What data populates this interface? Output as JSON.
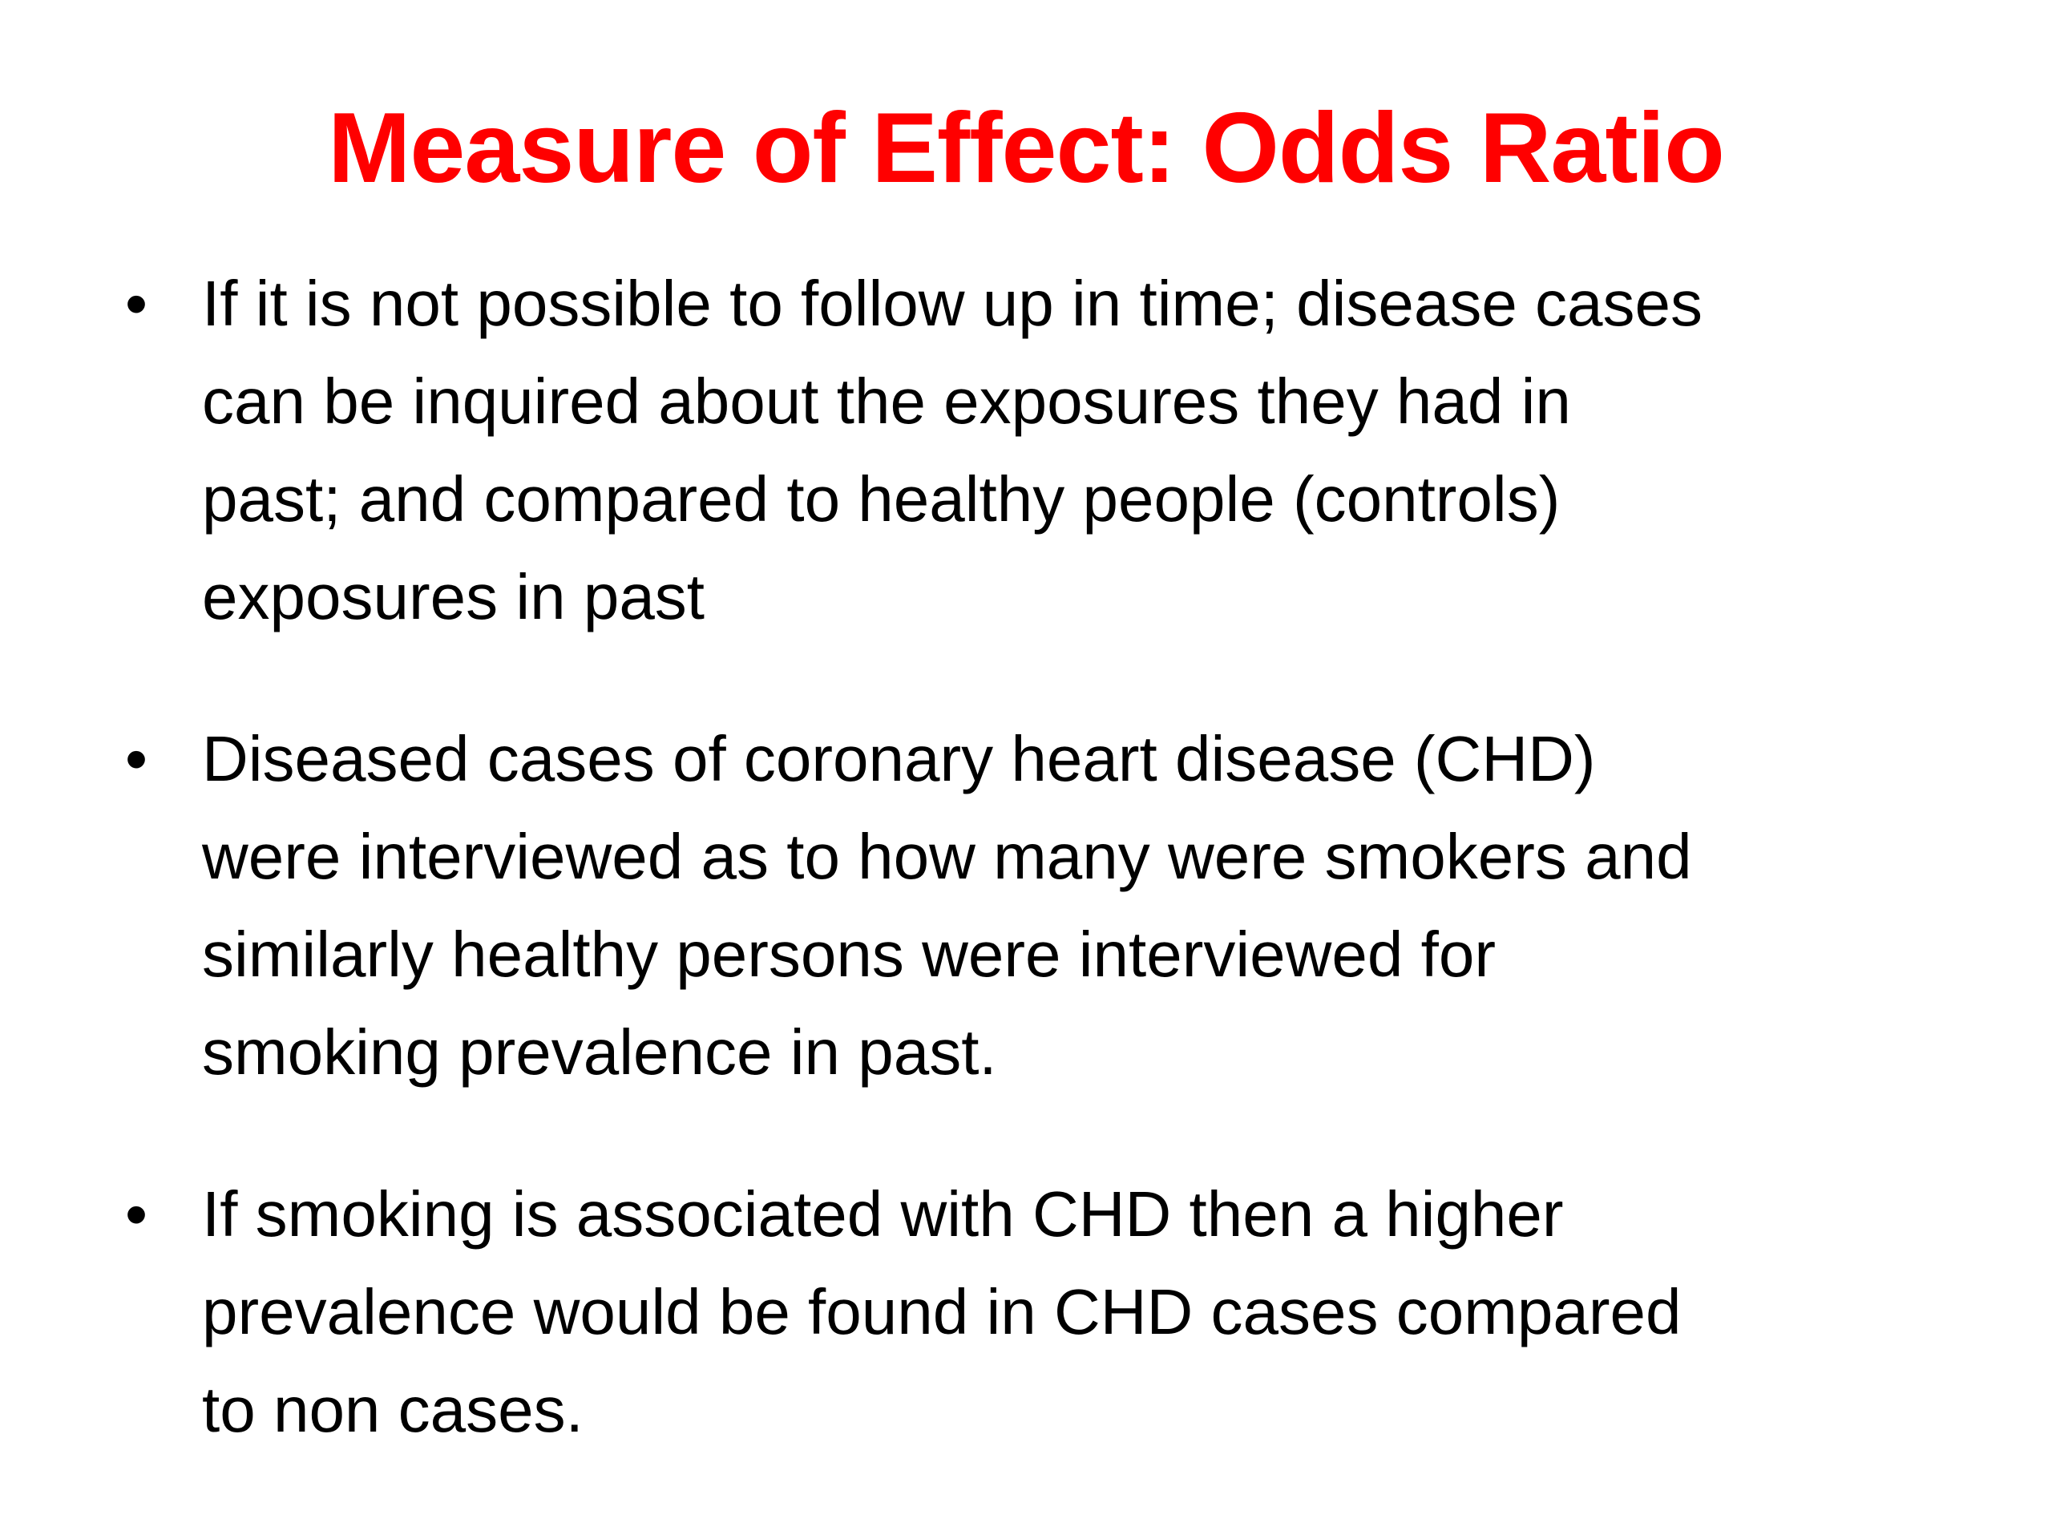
{
  "slide": {
    "title": "Measure of Effect: Odds Ratio",
    "title_color": "#ff0000",
    "bullet_symbol": "•",
    "bullets": [
      {
        "lines": [
          "If it is not possible to follow up in time; disease cases",
          "can be inquired about the exposures they had in",
          "past; and compared to healthy people (controls)",
          "exposures in past"
        ]
      },
      {
        "lines": [
          "Diseased cases of coronary heart disease (CHD)",
          "were interviewed as to how many were smokers and",
          "similarly healthy persons were interviewed for",
          "smoking prevalence in past."
        ]
      },
      {
        "lines": [
          "If smoking is associated with CHD then a higher",
          "prevalence would be found in CHD cases compared",
          "to non cases."
        ]
      }
    ]
  }
}
